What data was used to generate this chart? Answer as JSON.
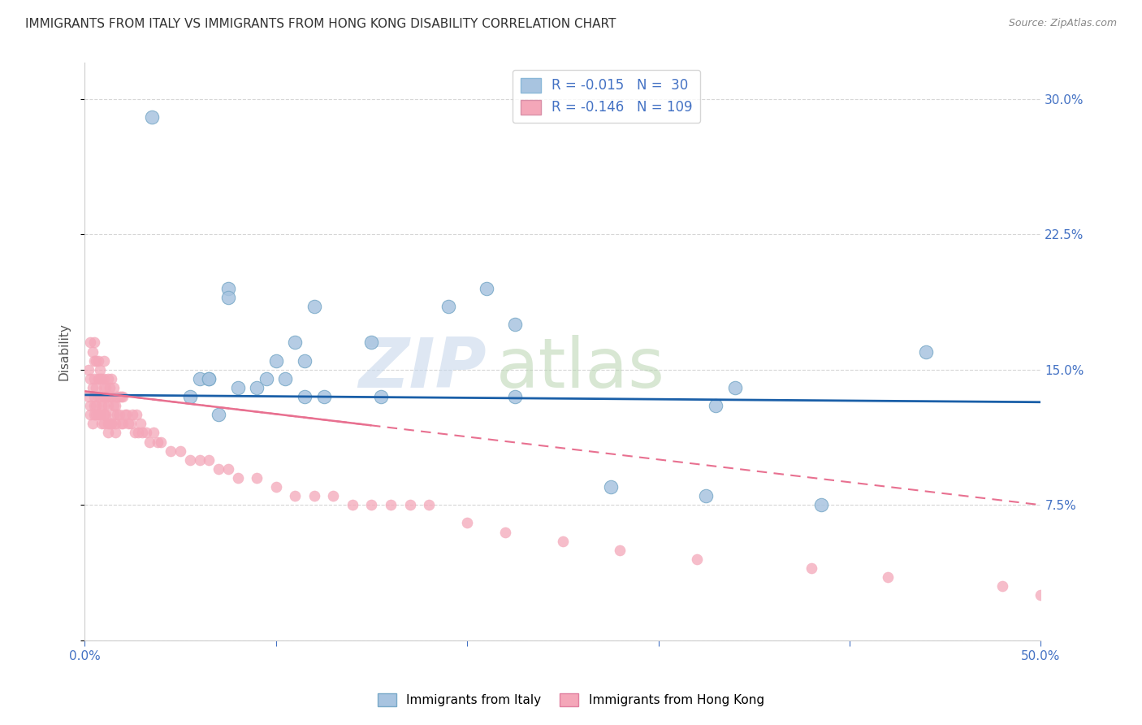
{
  "title": "IMMIGRANTS FROM ITALY VS IMMIGRANTS FROM HONG KONG DISABILITY CORRELATION CHART",
  "source": "Source: ZipAtlas.com",
  "ylabel": "Disability",
  "xlim": [
    0,
    50
  ],
  "ylim": [
    0,
    32
  ],
  "yticks": [
    0,
    7.5,
    15.0,
    22.5,
    30.0
  ],
  "ytick_labels": [
    "",
    "7.5%",
    "15.0%",
    "22.5%",
    "30.0%"
  ],
  "xticks": [
    0,
    10,
    20,
    30,
    40,
    50
  ],
  "xtick_labels": [
    "0.0%",
    "",
    "",
    "",
    "",
    "50.0%"
  ],
  "legend_R_italy": "-0.015",
  "legend_N_italy": "30",
  "legend_R_hk": "-0.146",
  "legend_N_hk": "109",
  "italy_color": "#a8c4e0",
  "italy_edge_color": "#7aaac8",
  "hk_color": "#f4a7b9",
  "hk_edge_color": "#e080a0",
  "italy_line_color": "#1a5fa8",
  "hk_line_color": "#e87090",
  "tick_color": "#4472c4",
  "grid_color": "#cccccc",
  "title_color": "#333333",
  "source_color": "#888888",
  "italy_scatter_x": [
    3.5,
    5.5,
    6.0,
    6.5,
    7.5,
    7.5,
    8.0,
    9.0,
    9.5,
    10.0,
    10.5,
    11.0,
    11.5,
    11.5,
    12.0,
    12.5,
    15.0,
    15.5,
    19.0,
    21.0,
    22.5,
    22.5,
    27.5,
    32.5,
    34.0,
    38.5,
    44.0,
    33.0,
    6.5,
    7.0
  ],
  "italy_scatter_y": [
    29.0,
    13.5,
    14.5,
    14.5,
    19.5,
    19.0,
    14.0,
    14.0,
    14.5,
    15.5,
    14.5,
    16.5,
    13.5,
    15.5,
    18.5,
    13.5,
    16.5,
    13.5,
    18.5,
    19.5,
    17.5,
    13.5,
    8.5,
    8.0,
    14.0,
    7.5,
    16.0,
    13.0,
    14.5,
    12.5
  ],
  "hk_scatter_x": [
    0.2,
    0.2,
    0.3,
    0.3,
    0.3,
    0.3,
    0.4,
    0.4,
    0.4,
    0.5,
    0.5,
    0.5,
    0.5,
    0.5,
    0.5,
    0.6,
    0.6,
    0.6,
    0.6,
    0.7,
    0.7,
    0.7,
    0.7,
    0.8,
    0.8,
    0.8,
    0.8,
    0.9,
    0.9,
    0.9,
    1.0,
    1.0,
    1.0,
    1.0,
    1.0,
    1.0,
    1.0,
    1.1,
    1.1,
    1.1,
    1.2,
    1.2,
    1.2,
    1.2,
    1.3,
    1.3,
    1.3,
    1.4,
    1.4,
    1.4,
    1.5,
    1.5,
    1.5,
    1.6,
    1.6,
    1.7,
    1.7,
    1.8,
    1.8,
    1.9,
    1.9,
    2.0,
    2.0,
    2.1,
    2.2,
    2.3,
    2.4,
    2.5,
    2.6,
    2.7,
    2.8,
    2.9,
    3.0,
    3.2,
    3.4,
    3.6,
    3.8,
    4.0,
    4.5,
    5.0,
    5.5,
    6.0,
    6.5,
    7.0,
    7.5,
    8.0,
    9.0,
    10.0,
    11.0,
    12.0,
    13.0,
    14.0,
    15.0,
    16.0,
    17.0,
    18.0,
    20.0,
    22.0,
    25.0,
    28.0,
    32.0,
    38.0,
    42.0,
    48.0,
    50.0,
    1.0,
    1.2,
    1.4,
    1.6
  ],
  "hk_scatter_y": [
    13.5,
    15.0,
    12.5,
    14.5,
    16.5,
    13.0,
    12.0,
    14.0,
    16.0,
    12.5,
    13.5,
    14.5,
    15.5,
    16.5,
    13.0,
    13.0,
    14.0,
    15.5,
    12.5,
    13.5,
    14.5,
    12.5,
    15.5,
    13.5,
    14.5,
    12.5,
    15.0,
    13.0,
    14.5,
    12.0,
    13.5,
    14.5,
    12.5,
    15.5,
    13.0,
    14.0,
    12.0,
    13.5,
    14.0,
    12.5,
    13.5,
    12.0,
    14.5,
    13.0,
    13.5,
    12.0,
    14.0,
    13.5,
    12.0,
    14.5,
    13.0,
    14.0,
    12.5,
    13.0,
    12.0,
    13.5,
    12.5,
    12.5,
    13.5,
    12.0,
    13.5,
    12.0,
    13.5,
    12.5,
    12.5,
    12.0,
    12.0,
    12.5,
    11.5,
    12.5,
    11.5,
    12.0,
    11.5,
    11.5,
    11.0,
    11.5,
    11.0,
    11.0,
    10.5,
    10.5,
    10.0,
    10.0,
    10.0,
    9.5,
    9.5,
    9.0,
    9.0,
    8.5,
    8.0,
    8.0,
    8.0,
    7.5,
    7.5,
    7.5,
    7.5,
    7.5,
    6.5,
    6.0,
    5.5,
    5.0,
    4.5,
    4.0,
    3.5,
    3.0,
    2.5,
    12.5,
    11.5,
    12.0,
    11.5
  ],
  "italy_line_x0": 0,
  "italy_line_x1": 50,
  "italy_line_y0": 13.6,
  "italy_line_y1": 13.2,
  "hk_line_x0": 0,
  "hk_line_x1": 50,
  "hk_line_y0": 13.8,
  "hk_line_y1": 7.5
}
